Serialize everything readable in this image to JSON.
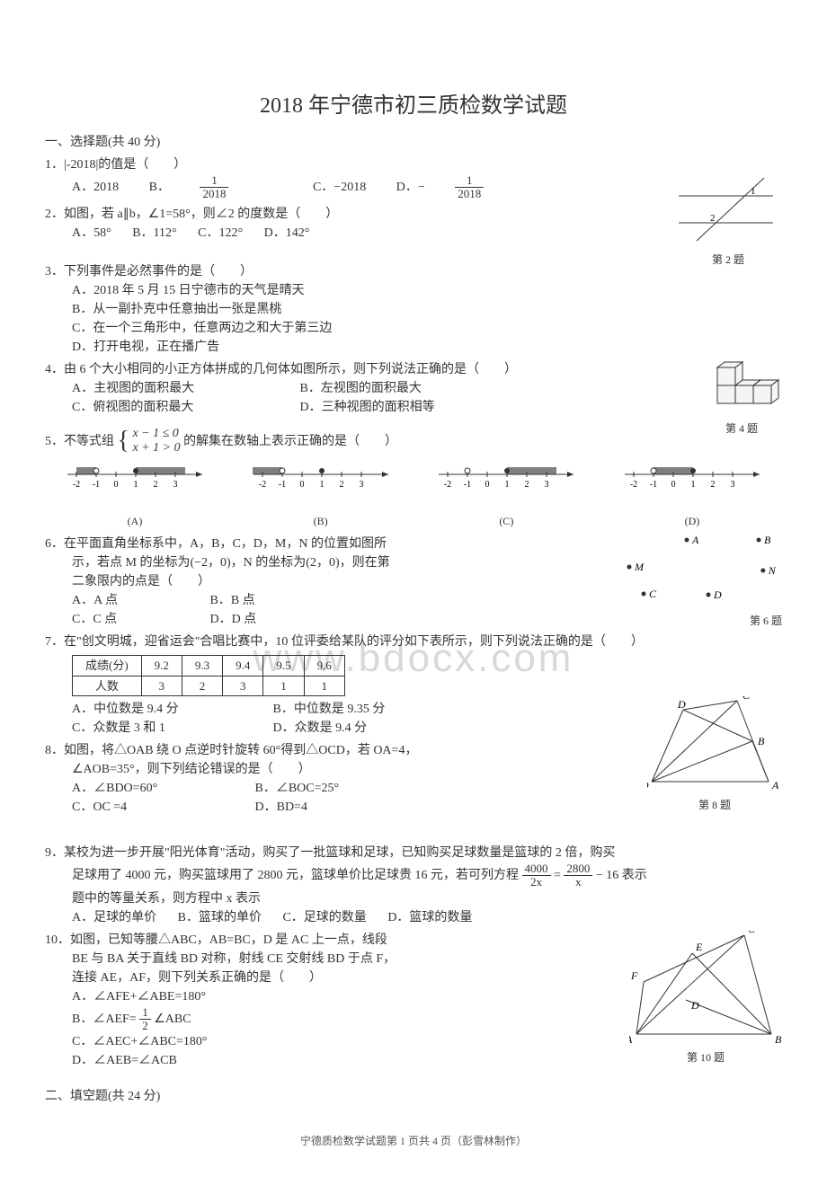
{
  "title": "2018 年宁德市初三质检数学试题",
  "section1": "一、选择题(共 40 分)",
  "section2": "二、填空题(共 24 分)",
  "footer": "宁德质检数学试题第 1 页共 4 页（彭雪林制作）",
  "watermark": "www.bdocx.com",
  "q1": {
    "stem": "1．|-2018|的值是（　　）",
    "A": "A．2018",
    "B_prefix": "B．",
    "B_num": "1",
    "B_den": "2018",
    "C": "C．−2018",
    "D_prefix": "D．−",
    "D_num": "1",
    "D_den": "2018"
  },
  "q2": {
    "stem": "2．如图，若 a∥b，∠1=58°，则∠2 的度数是（　　）",
    "A": "A．58°",
    "B": "B．112°",
    "C": "C．122°",
    "D": "D．142°",
    "fig_label": "第 2 题",
    "fig": {
      "line_color": "#333333",
      "label1": "1",
      "label2": "2"
    }
  },
  "q3": {
    "stem": "3．下列事件是必然事件的是（　　）",
    "A": "A．2018 年 5 月 15 日宁德市的天气是晴天",
    "B": "B．从一副扑克中任意抽出一张是黑桃",
    "C": "C．在一个三角形中，任意两边之和大于第三边",
    "D": "D．打开电视，正在播广告"
  },
  "q4": {
    "stem": "4．由 6 个大小相同的小正方体拼成的几何体如图所示，则下列说法正确的是（　　）",
    "A": "A．主视图的面积最大",
    "B": "B．左视图的面积最大",
    "C": "C．俯视图的面积最大",
    "D": "D．三种视图的面积相等",
    "fig_label": "第 4 题",
    "fig": {
      "stroke": "#333333",
      "fill": "#f0f0f0"
    }
  },
  "q5": {
    "stem_prefix": "5．不等式组",
    "line1": "x − 1 ≤ 0",
    "line2": "x + 1 > 0",
    "stem_suffix": "的解集在数轴上表示正确的是（　　）",
    "labels": {
      "A": "(A)",
      "B": "(B)",
      "C": "(C)",
      "D": "(D)"
    },
    "numberline": {
      "ticks": [
        "-2",
        "-1",
        "0",
        "1",
        "2",
        "3"
      ],
      "shade_color": "#808080",
      "line_color": "#333333",
      "A": {
        "open_at": -1,
        "closed_at": 1,
        "shade": [
          [
            -2,
            -1
          ],
          [
            1,
            3.5
          ]
        ]
      },
      "B": {
        "open_at": -1,
        "closed_at": 1,
        "shade": [
          [
            -2.5,
            -1
          ]
        ]
      },
      "C": {
        "open_at": -1,
        "closed_at": 1,
        "shade": [
          [
            1,
            3.5
          ]
        ]
      },
      "D": {
        "open_at": -1,
        "closed_at": 1,
        "shade": [
          [
            -1,
            1
          ]
        ]
      }
    }
  },
  "q6": {
    "l1": "6．在平面直角坐标系中，A，B，C，D，M，N 的位置如图所",
    "l2": "示，若点 M 的坐标为(−2，0)，N 的坐标为(2，0)，则在第",
    "l3": "二象限内的点是（　　）",
    "A": "A．A 点",
    "B": "B．B 点",
    "C": "C．C 点",
    "D": "D．D 点",
    "fig_label": "第 6 题",
    "fig": {
      "points": {
        "A": [
          4,
          0
        ],
        "B": [
          9,
          0
        ],
        "M": [
          0,
          3
        ],
        "N": [
          9.3,
          3.4
        ],
        "C": [
          1,
          6
        ],
        "D": [
          5.5,
          6.1
        ]
      },
      "dot_color": "#333333"
    }
  },
  "q7": {
    "stem": "7．在\"创文明城，迎省运会\"合唱比赛中，10 位评委给某队的评分如下表所示，则下列说法正确的是（　　）",
    "table": {
      "header": [
        "成绩(分)",
        "9.2",
        "9.3",
        "9.4",
        "9.5",
        "9.6"
      ],
      "row": [
        "人数",
        "3",
        "2",
        "3",
        "1",
        "1"
      ]
    },
    "A": "A．中位数是 9.4 分",
    "B": "B．中位数是 9.35 分",
    "C": "C．众数是 3 和 1",
    "D": "D．众数是 9.4 分"
  },
  "q8": {
    "l1": "8．如图，将△OAB 绕 O 点逆时针旋转 60°得到△OCD，若 OA=4，",
    "l2": "∠AOB=35°，则下列结论错误的是（　　）",
    "A": "A．∠BDO=60°",
    "B": "B．∠BOC=25°",
    "C": "C．OC =4",
    "D": "D．BD=4",
    "fig_label": "第 8 题",
    "fig": {
      "O": [
        0,
        90
      ],
      "A": [
        130,
        90
      ],
      "B": [
        112,
        45
      ],
      "C": [
        95,
        0
      ],
      "D": [
        35,
        10
      ],
      "stroke": "#333333"
    }
  },
  "q9": {
    "l1": "9．某校为进一步开展\"阳光体育\"活动，购买了一批篮球和足球，已知购买足球数量是篮球的 2 倍，购买",
    "l2_prefix": "足球用了 4000 元，购买篮球用了 2800 元，篮球单价比足球贵 16 元，若可列方程 ",
    "eq_a_num": "4000",
    "eq_a_den": "2x",
    "eq_eq": "=",
    "eq_b_num": "2800",
    "eq_b_den": "x",
    "eq_suffix": " − 16 表示",
    "l3": "题中的等量关系，则方程中 x 表示",
    "A": "A．足球的单价",
    "B": "B．篮球的单价",
    "C": "C．足球的数量",
    "D": "D．篮球的数量"
  },
  "q10": {
    "l1": "10．如图，已知等腰△ABC，AB=BC，D 是 AC 上一点，线段",
    "l2": "BE 与 BA 关于直线 BD 对称，射线 CE 交射线 BD 于点 F，",
    "l3": "连接 AE，AF，则下列关系正确的是（　　）",
    "A": "A．∠AFE+∠ABE=180°",
    "B_prefix": "B．∠AEF=",
    "B_num": "1",
    "B_den": "2",
    "B_suffix": "∠ABC",
    "C": "C．∠AEC+∠ABC=180°",
    "D": "D．∠AEB=∠ACB",
    "fig_label": "第 10 题",
    "fig": {
      "A": [
        0,
        110
      ],
      "B": [
        150,
        110
      ],
      "C": [
        120,
        0
      ],
      "D": [
        55,
        72
      ],
      "E": [
        62,
        20
      ],
      "F": [
        8,
        52
      ],
      "stroke": "#333333"
    }
  },
  "colors": {
    "text": "#333333",
    "bg": "#ffffff",
    "watermark": "#d8d8d8"
  }
}
